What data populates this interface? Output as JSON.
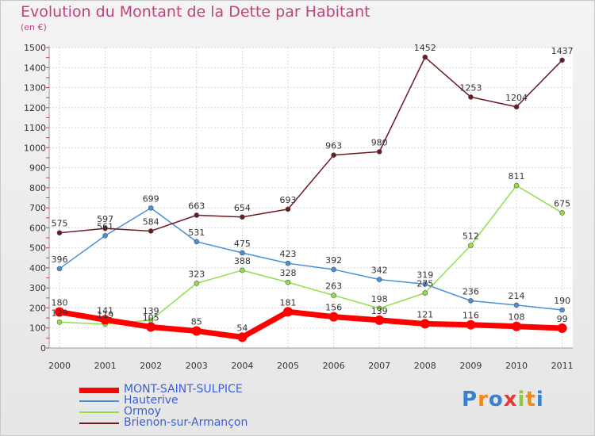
{
  "title": "Evolution du Montant de la Dette par Habitant",
  "unit": "(en €)",
  "logo": [
    "P",
    "r",
    "o",
    "x",
    "i",
    "t",
    "i"
  ],
  "logo_colors": [
    "#3b7fd0",
    "#f08a1c",
    "#3b7fd0",
    "#e23b3b",
    "#8dc63f",
    "#f08a1c",
    "#3b7fd0"
  ],
  "chart_data": {
    "type": "line",
    "title": "Evolution du Montant de la Dette par Habitant",
    "ylabel": "(en €)",
    "xlabel": "",
    "x": [
      "2000",
      "2001",
      "2002",
      "2003",
      "2004",
      "2005",
      "2006",
      "2007",
      "2008",
      "2009",
      "2010",
      "2011"
    ],
    "ylim": [
      0,
      1500
    ],
    "yticks": [
      0,
      100,
      200,
      300,
      400,
      500,
      600,
      700,
      800,
      900,
      1000,
      1100,
      1200,
      1300,
      1400,
      1500
    ],
    "grid": true,
    "legend": "bottom-left",
    "series": [
      {
        "name": "MONT-SAINT-SULPICE",
        "color": "#ff0000",
        "values": [
          180,
          141,
          105,
          85,
          54,
          181,
          156,
          139,
          121,
          116,
          108,
          99
        ],
        "labels": [
          "180",
          "141",
          "105",
          "85",
          "54",
          "181",
          "156",
          "139",
          "121",
          "116",
          "108",
          "99"
        ],
        "width": 7
      },
      {
        "name": "Hauterive",
        "color": "#4a90d9",
        "values": [
          396,
          561,
          699,
          531,
          475,
          423,
          392,
          342,
          319,
          236,
          214,
          190
        ],
        "labels": [
          "396",
          "561",
          "699",
          "531",
          "475",
          "423",
          "392",
          "342",
          "319",
          "236",
          "214",
          "190"
        ],
        "width": 1.5
      },
      {
        "name": "Ormoy",
        "color": "#8fe04a",
        "values": [
          129,
          119,
          139,
          323,
          388,
          328,
          263,
          198,
          275,
          512,
          811,
          675
        ],
        "labels": [
          "129",
          "119",
          "139",
          "323",
          "388",
          "328",
          "263",
          "198",
          "275",
          "512",
          "811",
          "675"
        ],
        "width": 1.5
      },
      {
        "name": "Brienon-sur-Armançon",
        "color": "#6b1a22",
        "values": [
          575,
          597,
          584,
          663,
          654,
          693,
          963,
          980,
          1452,
          1253,
          1204,
          1437
        ],
        "labels": [
          "575",
          "597",
          "584",
          "663",
          "654",
          "693",
          "963",
          "980",
          "1452",
          "1253",
          "1204",
          "1437"
        ],
        "width": 1.5
      }
    ]
  }
}
